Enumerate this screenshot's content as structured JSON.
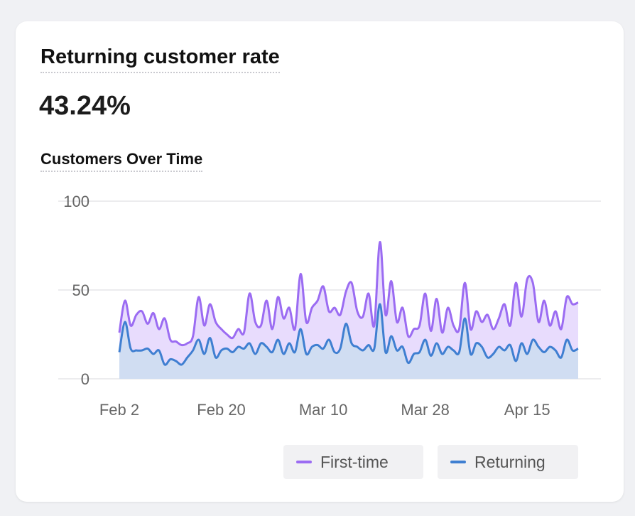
{
  "card": {
    "title": "Returning customer rate",
    "metric_value": "43.24%",
    "chart_title": "Customers Over Time"
  },
  "colors": {
    "first_time_line": "#9b6cf2",
    "first_time_fill": "#e8dcfd",
    "returning_line": "#3f7fd1",
    "returning_fill": "#d0ddf2",
    "grid": "#e6e6e9",
    "tick_text": "#666666"
  },
  "chart_data": {
    "type": "area",
    "title": "Customers Over Time",
    "xlabel": "",
    "ylabel": "",
    "ylim": [
      0,
      100
    ],
    "yticks": [
      0,
      50,
      100
    ],
    "xticks": [
      "Feb 2",
      "Feb 20",
      "Mar 10",
      "Mar 28",
      "Apr 15"
    ],
    "x_start": "Feb 2",
    "x_end": "May 1",
    "grid": true,
    "legend_position": "bottom-right",
    "series": [
      {
        "name": "First-time",
        "values": [
          26,
          44,
          30,
          36,
          38,
          31,
          37,
          28,
          34,
          22,
          21,
          19,
          20,
          24,
          46,
          30,
          42,
          32,
          28,
          25,
          23,
          28,
          26,
          48,
          32,
          30,
          44,
          28,
          46,
          34,
          40,
          28,
          59,
          32,
          40,
          44,
          52,
          38,
          40,
          36,
          49,
          54,
          38,
          35,
          48,
          30,
          77,
          36,
          55,
          32,
          40,
          24,
          28,
          30,
          48,
          27,
          45,
          26,
          40,
          30,
          28,
          54,
          28,
          38,
          32,
          36,
          28,
          34,
          42,
          30,
          54,
          35,
          56,
          54,
          32,
          44,
          30,
          38,
          28,
          46,
          42,
          43
        ]
      },
      {
        "name": "Returning",
        "values": [
          15,
          32,
          17,
          16,
          16,
          17,
          14,
          16,
          8,
          11,
          10,
          8,
          12,
          16,
          22,
          14,
          23,
          12,
          16,
          17,
          15,
          18,
          17,
          20,
          14,
          20,
          18,
          15,
          22,
          14,
          20,
          15,
          28,
          14,
          18,
          19,
          17,
          22,
          15,
          17,
          31,
          20,
          18,
          16,
          19,
          17,
          42,
          15,
          24,
          16,
          18,
          9,
          14,
          15,
          22,
          13,
          20,
          14,
          18,
          16,
          15,
          34,
          14,
          20,
          18,
          12,
          14,
          18,
          16,
          19,
          10,
          20,
          14,
          22,
          18,
          15,
          18,
          16,
          12,
          22,
          16,
          17
        ]
      }
    ]
  },
  "legend": {
    "first_time_label": "First-time",
    "returning_label": "Returning"
  }
}
